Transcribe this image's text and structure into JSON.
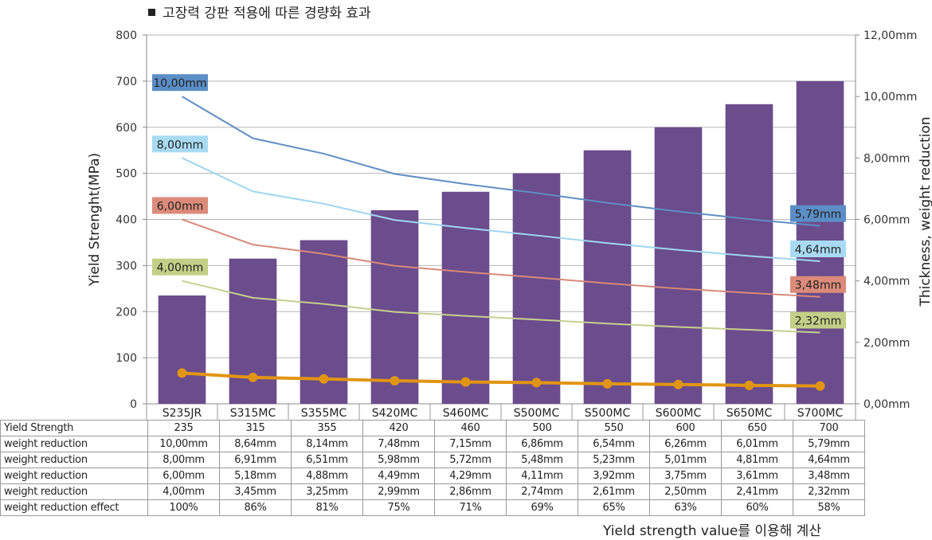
{
  "chart_data": {
    "type": "bar",
    "title": "고장력 강판 적용에 따른 경량화 효과",
    "ylabel": "Yield Strenght(MPa)",
    "y2label": "Thickness, weight reduction",
    "ylim": [
      0,
      800
    ],
    "y2lim": [
      0,
      12
    ],
    "y_ticks": [
      "0",
      "100",
      "200",
      "300",
      "400",
      "500",
      "600",
      "700",
      "800"
    ],
    "y2_ticks": [
      "0,00mm",
      "2,00mm",
      "4,00mm",
      "6,00mm",
      "8,00mm",
      "10,00mm",
      "12,00mm"
    ],
    "categories": [
      "S235JR",
      "S315MC",
      "S355MC",
      "S420MC",
      "S460MC",
      "S500MC",
      "S500MC",
      "S600MC",
      "S650MC",
      "S700MC"
    ],
    "bars": {
      "name": "Yield Strength",
      "color": "#6b4c8c",
      "values": [
        235,
        315,
        355,
        420,
        460,
        500,
        550,
        600,
        650,
        700
      ]
    },
    "lines": [
      {
        "name": "weight reduction",
        "color": "#5f8fc4",
        "values": [
          10.0,
          8.64,
          8.14,
          7.48,
          7.15,
          6.86,
          6.54,
          6.26,
          6.01,
          5.79
        ],
        "start_label": "10,00mm",
        "end_label": "5,79mm",
        "label_bg": "#5b8ec7"
      },
      {
        "name": "weight reduction",
        "color": "#9ed6f0",
        "values": [
          8.0,
          6.91,
          6.51,
          5.98,
          5.72,
          5.48,
          5.23,
          5.01,
          4.81,
          4.64
        ],
        "start_label": "8,00mm",
        "end_label": "4,64mm",
        "label_bg": "#a8dbf3"
      },
      {
        "name": "weight reduction",
        "color": "#d9897a",
        "values": [
          6.0,
          5.18,
          4.88,
          4.49,
          4.29,
          4.11,
          3.92,
          3.75,
          3.61,
          3.48
        ],
        "start_label": "6,00mm",
        "end_label": "3,48mm",
        "label_bg": "#dc8b7a"
      },
      {
        "name": "weight reduction",
        "color": "#c5d08f",
        "values": [
          4.0,
          3.45,
          3.25,
          2.99,
          2.86,
          2.74,
          2.61,
          2.5,
          2.41,
          2.32
        ],
        "start_label": "4,00mm",
        "end_label": "2,32mm",
        "label_bg": "#c3cf86"
      },
      {
        "name": "weight reduction effect",
        "color": "#e19514",
        "values": [
          1.0,
          0.86,
          0.81,
          0.75,
          0.71,
          0.69,
          0.65,
          0.63,
          0.6,
          0.58
        ],
        "markers": true
      }
    ]
  },
  "table": {
    "header": {
      "label": "Yield Strength",
      "values": [
        "235",
        "315",
        "355",
        "420",
        "460",
        "500",
        "550",
        "600",
        "650",
        "700"
      ]
    },
    "rows": [
      {
        "label": "weight reduction",
        "values": [
          "10,00mm",
          "8,64mm",
          "8,14mm",
          "7,48mm",
          "7,15mm",
          "6,86mm",
          "6,54mm",
          "6,26mm",
          "6,01mm",
          "5,79mm"
        ]
      },
      {
        "label": "weight reduction",
        "values": [
          "8,00mm",
          "6,91mm",
          "6,51mm",
          "5,98mm",
          "5,72mm",
          "5,48mm",
          "5,23mm",
          "5,01mm",
          "4,81mm",
          "4,64mm"
        ]
      },
      {
        "label": "weight reduction",
        "values": [
          "6,00mm",
          "5,18mm",
          "4,88mm",
          "4,49mm",
          "4,29mm",
          "4,11mm",
          "3,92mm",
          "3,75mm",
          "3,61mm",
          "3,48mm"
        ]
      },
      {
        "label": "weight reduction",
        "values": [
          "4,00mm",
          "3,45mm",
          "3,25mm",
          "2,99mm",
          "2,86mm",
          "2,74mm",
          "2,61mm",
          "2,50mm",
          "2,41mm",
          "2,32mm"
        ]
      },
      {
        "label": "weight reduction effect",
        "values": [
          "100%",
          "86%",
          "81%",
          "75%",
          "71%",
          "69%",
          "65%",
          "63%",
          "60%",
          "58%"
        ]
      }
    ]
  },
  "footnote": "Yield strength value를 이용해 계산"
}
